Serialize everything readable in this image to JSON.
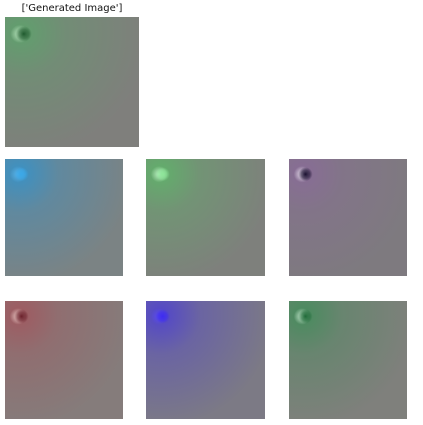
{
  "figure": {
    "title": "['Generated Image']"
  },
  "panels": [
    {
      "name": "generated-image",
      "base": "#7f7f7c",
      "tint": "#5aa66a",
      "dot": "#1f5a2e",
      "dot2": "#c9f0cc"
    },
    {
      "name": "image-variant-1",
      "base": "#7b8384",
      "tint": "#2f94d0",
      "dot": "#3aa8e8",
      "dot2": "#5fb8ee"
    },
    {
      "name": "image-variant-2",
      "base": "#7e807c",
      "tint": "#5cb868",
      "dot": "#8ee69a",
      "dot2": "#c9f7cf"
    },
    {
      "name": "image-variant-3",
      "base": "#7e7a7f",
      "tint": "#8a6a9a",
      "dot": "#1a1030",
      "dot2": "#f4eef8"
    },
    {
      "name": "image-variant-4",
      "base": "#857c7b",
      "tint": "#a4545c",
      "dot": "#6a1f2a",
      "dot2": "#f1d7d2"
    },
    {
      "name": "image-variant-5",
      "base": "#7c7a85",
      "tint": "#4a3cd8",
      "dot": "#3e2cf0",
      "dot2": "#5b4cf4"
    },
    {
      "name": "image-variant-6",
      "base": "#7f807c",
      "tint": "#3e8e58",
      "dot": "#1f6a38",
      "dot2": "#d6f2dc"
    }
  ]
}
